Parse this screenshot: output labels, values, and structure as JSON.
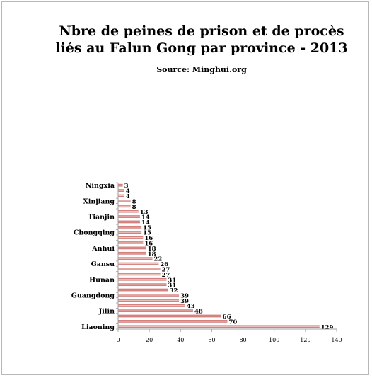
{
  "chart_data": {
    "type": "bar",
    "orientation": "horizontal",
    "title": "Nbre de peines de prison et de procès liés au Falun Gong par province - 2013",
    "title_lines": [
      "Nbre de peines de prison et de procès",
      "liés au Falun Gong par province - 2013"
    ],
    "subtitle": "Source: Minghui.org",
    "categories": [
      "Liaoning",
      "",
      "",
      "Jilin",
      "",
      "",
      "Guangdong",
      "",
      "",
      "Hunan",
      "",
      "",
      "Gansu",
      "",
      "",
      "Anhui",
      "",
      "",
      "Chongqing",
      "",
      "",
      "Tianjin",
      "",
      "",
      "Xinjiang",
      "",
      "",
      "Ningxia"
    ],
    "values": [
      129,
      70,
      66,
      48,
      43,
      39,
      39,
      32,
      31,
      31,
      27,
      27,
      26,
      22,
      18,
      18,
      16,
      16,
      15,
      15,
      14,
      14,
      13,
      8,
      8,
      4,
      4,
      3
    ],
    "x_ticks": [
      "0",
      "20",
      "40",
      "60",
      "80",
      "100",
      "120",
      "140"
    ],
    "xlim": [
      0,
      140
    ],
    "grid": false,
    "legend": "none",
    "bar_color": "#d4807d",
    "bar_stripe_color": "#f2c9c7"
  }
}
